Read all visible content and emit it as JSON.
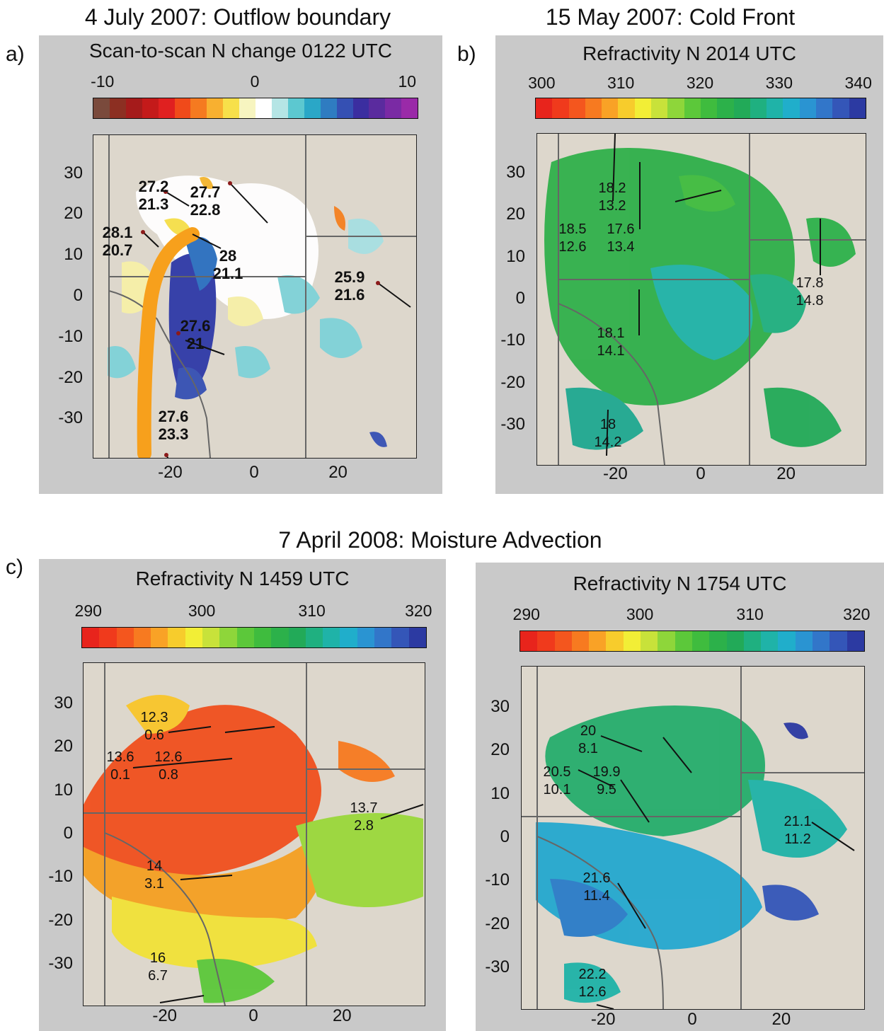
{
  "figure": {
    "row_title_ab_left": "4 July 2007: Outflow boundary",
    "row_title_ab_right": "15 May 2007: Cold Front",
    "row_title_c": "7 April 2008: Moisture Advection"
  },
  "panels": [
    {
      "id": "a",
      "label": "a)",
      "subtitle": "Scan-to-scan N change 0122 UTC",
      "colorbar": {
        "ticks": [
          "-10",
          "0",
          "10"
        ],
        "colors": [
          "#7a4a3c",
          "#8c2f22",
          "#a51b1b",
          "#c41a1a",
          "#e02020",
          "#f04a1a",
          "#f57a20",
          "#f8b030",
          "#f7e04a",
          "#f7f5c0",
          "#ffffff",
          "#b5e5e5",
          "#5cc8d0",
          "#2aa7c7",
          "#2f7cc1",
          "#3550b3",
          "#3b2ea0",
          "#5a2b9e",
          "#7a2aa4",
          "#9a2aa8"
        ],
        "tick_fracs": [
          0.03,
          0.5,
          0.97
        ]
      },
      "yticks": [
        "30",
        "20",
        "10",
        "0",
        "-10",
        "-20",
        "-30"
      ],
      "xticks": [
        "-20",
        "0",
        "20"
      ],
      "observations": [
        {
          "line1": "27.2",
          "line2": "21.3"
        },
        {
          "line1": "27.7",
          "line2": "22.8"
        },
        {
          "line1": "28.1",
          "line2": "20.7"
        },
        {
          "line1": "28",
          "line2": "21.1"
        },
        {
          "line1": "25.9",
          "line2": "21.6"
        },
        {
          "line1": "27.6",
          "line2": "21"
        },
        {
          "line1": "27.6",
          "line2": "23.3"
        }
      ]
    },
    {
      "id": "b",
      "label": "b)",
      "subtitle": "Refractivity N 2014 UTC",
      "colorbar": {
        "ticks": [
          "300",
          "310",
          "320",
          "330",
          "340"
        ],
        "colors": [
          "#e8241c",
          "#f03a1c",
          "#f4561e",
          "#f77a20",
          "#f9a226",
          "#f7cc2c",
          "#f2ee36",
          "#c8e23a",
          "#8ed63a",
          "#5cc83a",
          "#3fbc3e",
          "#2cb14a",
          "#22aa58",
          "#1fb080",
          "#1fb3a8",
          "#20aecb",
          "#2a94d2",
          "#3276c9",
          "#3456b8",
          "#2c3aa2"
        ],
        "tick_fracs": [
          0.02,
          0.26,
          0.5,
          0.74,
          0.98
        ]
      },
      "yticks": [
        "30",
        "20",
        "10",
        "0",
        "-10",
        "-20",
        "-30"
      ],
      "xticks": [
        "-20",
        "0",
        "20"
      ],
      "observations": [
        {
          "line1": "18.2",
          "line2": "13.2"
        },
        {
          "line1": "18.5",
          "line2": "12.6"
        },
        {
          "line1": "17.6",
          "line2": "13.4"
        },
        {
          "line1": "17.8",
          "line2": "14.8"
        },
        {
          "line1": "18.1",
          "line2": "14.1"
        },
        {
          "line1": "18",
          "line2": "14.2"
        }
      ]
    },
    {
      "id": "c1",
      "label": "c)",
      "subtitle": "Refractivity N 1459 UTC",
      "colorbar": {
        "ticks": [
          "290",
          "300",
          "310",
          "320"
        ],
        "colors": [
          "#e8241c",
          "#f03a1c",
          "#f4561e",
          "#f77a20",
          "#f9a226",
          "#f7cc2c",
          "#f2ee36",
          "#c8e23a",
          "#8ed63a",
          "#5cc83a",
          "#3fbc3e",
          "#2cb14a",
          "#22aa58",
          "#1fb080",
          "#1fb3a8",
          "#20aecb",
          "#2a94d2",
          "#3276c9",
          "#3456b8",
          "#2c3aa2"
        ],
        "tick_fracs": [
          0.02,
          0.35,
          0.67,
          0.98
        ]
      },
      "yticks": [
        "30",
        "20",
        "10",
        "0",
        "-10",
        "-20",
        "-30"
      ],
      "xticks": [
        "-20",
        "0",
        "20"
      ],
      "observations": [
        {
          "line1": "12.3",
          "line2": "0.6"
        },
        {
          "line1": "13.6",
          "line2": "0.1"
        },
        {
          "line1": "12.6",
          "line2": "0.8"
        },
        {
          "line1": "13.7",
          "line2": "2.8"
        },
        {
          "line1": "14",
          "line2": "3.1"
        },
        {
          "line1": "16",
          "line2": "6.7"
        }
      ]
    },
    {
      "id": "c2",
      "label": "",
      "subtitle": "Refractivity N 1754 UTC",
      "colorbar": {
        "ticks": [
          "290",
          "300",
          "310",
          "320"
        ],
        "colors": [
          "#e8241c",
          "#f03a1c",
          "#f4561e",
          "#f77a20",
          "#f9a226",
          "#f7cc2c",
          "#f2ee36",
          "#c8e23a",
          "#8ed63a",
          "#5cc83a",
          "#3fbc3e",
          "#2cb14a",
          "#22aa58",
          "#1fb080",
          "#1fb3a8",
          "#20aecb",
          "#2a94d2",
          "#3276c9",
          "#3456b8",
          "#2c3aa2"
        ],
        "tick_fracs": [
          0.02,
          0.35,
          0.67,
          0.98
        ]
      },
      "yticks": [
        "30",
        "20",
        "10",
        "0",
        "-10",
        "-20",
        "-30"
      ],
      "xticks": [
        "-20",
        "0",
        "20"
      ],
      "observations": [
        {
          "line1": "20",
          "line2": "8.1"
        },
        {
          "line1": "20.5",
          "line2": "10.1"
        },
        {
          "line1": "19.9",
          "line2": "9.5"
        },
        {
          "line1": "21.1",
          "line2": "11.2"
        },
        {
          "line1": "21.6",
          "line2": "11.4"
        },
        {
          "line1": "22.2",
          "line2": "12.6"
        }
      ]
    }
  ]
}
